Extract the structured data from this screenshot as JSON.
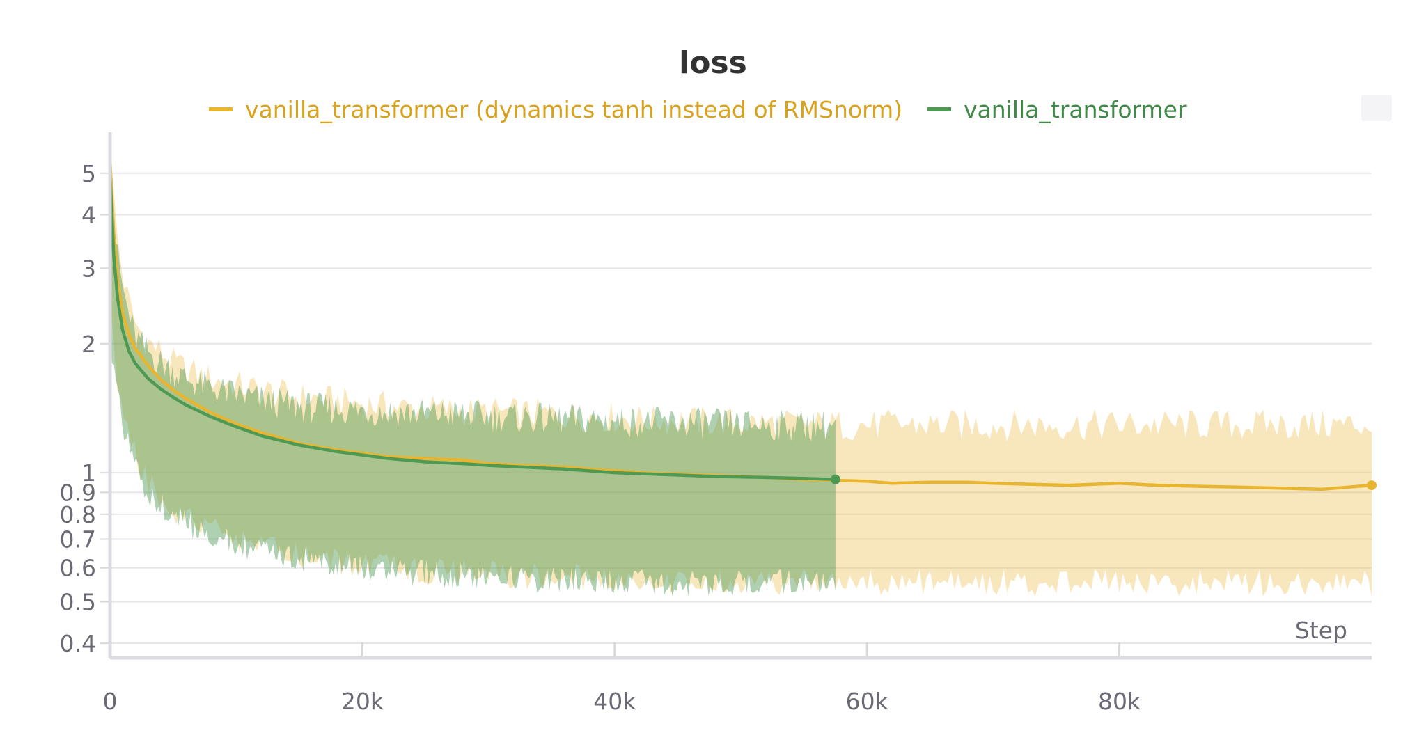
{
  "chart_data": {
    "type": "line",
    "title": "loss",
    "xlabel": "Step",
    "ylabel": "",
    "xlim": [
      0,
      100000
    ],
    "ylim": [
      0.37,
      6.0
    ],
    "yscale": "log",
    "grid": true,
    "legend_position": "top",
    "x_ticks": [
      {
        "value": 0,
        "label": "0"
      },
      {
        "value": 20000,
        "label": "20k"
      },
      {
        "value": 40000,
        "label": "40k"
      },
      {
        "value": 60000,
        "label": "60k"
      },
      {
        "value": 80000,
        "label": "80k"
      }
    ],
    "y_ticks": [
      {
        "value": 5,
        "label": "5"
      },
      {
        "value": 4,
        "label": "4"
      },
      {
        "value": 3,
        "label": "3"
      },
      {
        "value": 2,
        "label": "2"
      },
      {
        "value": 1,
        "label": "1"
      },
      {
        "value": 0.9,
        "label": "0.9"
      },
      {
        "value": 0.8,
        "label": "0.8"
      },
      {
        "value": 0.7,
        "label": "0.7"
      },
      {
        "value": 0.6,
        "label": "0.6"
      },
      {
        "value": 0.5,
        "label": "0.5"
      },
      {
        "value": 0.4,
        "label": "0.4"
      }
    ],
    "series": [
      {
        "name": "vanilla_transformer (dynamics tanh instead of RMSnorm)",
        "color": "#e8b530",
        "legend_text_color": "#d9a21c",
        "x": [
          0,
          300,
          600,
          1000,
          1500,
          2000,
          3000,
          4000,
          5000,
          6000,
          8000,
          10000,
          12000,
          15000,
          18000,
          20000,
          22000,
          25000,
          28000,
          30000,
          33000,
          36000,
          40000,
          44000,
          48000,
          52000,
          55000,
          57500,
          60000,
          62000,
          65000,
          68000,
          70000,
          73000,
          76000,
          80000,
          83000,
          86000,
          90000,
          93000,
          96000,
          98000,
          100000
        ],
        "y": [
          5.4,
          3.6,
          2.8,
          2.35,
          2.1,
          1.95,
          1.78,
          1.65,
          1.56,
          1.49,
          1.38,
          1.3,
          1.24,
          1.17,
          1.13,
          1.11,
          1.09,
          1.08,
          1.07,
          1.05,
          1.04,
          1.03,
          1.01,
          0.995,
          0.985,
          0.975,
          0.965,
          0.96,
          0.955,
          0.945,
          0.95,
          0.95,
          0.945,
          0.94,
          0.935,
          0.945,
          0.935,
          0.93,
          0.925,
          0.92,
          0.915,
          0.925,
          0.935
        ],
        "band_lower": [
          2.5,
          2.0,
          1.7,
          1.5,
          1.3,
          1.15,
          1.0,
          0.92,
          0.86,
          0.82,
          0.77,
          0.73,
          0.7,
          0.67,
          0.65,
          0.64,
          0.63,
          0.62,
          0.61,
          0.61,
          0.6,
          0.6,
          0.59,
          0.58,
          0.58,
          0.58,
          0.58,
          0.58,
          0.58,
          0.58,
          0.58,
          0.58,
          0.58,
          0.58,
          0.58,
          0.58,
          0.58,
          0.58,
          0.58,
          0.58,
          0.58,
          0.58,
          0.58
        ],
        "band_upper": [
          5.6,
          4.2,
          3.4,
          2.8,
          2.4,
          2.15,
          1.95,
          1.85,
          1.75,
          1.68,
          1.6,
          1.55,
          1.5,
          1.45,
          1.42,
          1.4,
          1.38,
          1.36,
          1.35,
          1.34,
          1.33,
          1.32,
          1.3,
          1.28,
          1.27,
          1.26,
          1.25,
          1.25,
          1.25,
          1.25,
          1.25,
          1.25,
          1.25,
          1.25,
          1.25,
          1.25,
          1.25,
          1.25,
          1.25,
          1.25,
          1.25,
          1.25,
          1.25
        ]
      },
      {
        "name": "vanilla_transformer",
        "color": "#4e9a55",
        "legend_text_color": "#3f8a48",
        "x": [
          0,
          300,
          600,
          1000,
          1500,
          2000,
          3000,
          4000,
          5000,
          6000,
          8000,
          10000,
          12000,
          15000,
          18000,
          20000,
          22000,
          25000,
          28000,
          30000,
          33000,
          36000,
          40000,
          44000,
          48000,
          52000,
          55000,
          57500
        ],
        "y": [
          5.0,
          3.2,
          2.55,
          2.15,
          1.92,
          1.8,
          1.66,
          1.57,
          1.5,
          1.44,
          1.35,
          1.28,
          1.22,
          1.16,
          1.12,
          1.1,
          1.08,
          1.06,
          1.05,
          1.04,
          1.03,
          1.02,
          1.0,
          0.99,
          0.98,
          0.975,
          0.97,
          0.965
        ],
        "band_lower": [
          2.3,
          1.8,
          1.55,
          1.35,
          1.2,
          1.08,
          0.95,
          0.88,
          0.83,
          0.8,
          0.75,
          0.71,
          0.68,
          0.66,
          0.64,
          0.63,
          0.62,
          0.61,
          0.6,
          0.6,
          0.59,
          0.59,
          0.58,
          0.58,
          0.58,
          0.58,
          0.58,
          0.58
        ],
        "band_upper": [
          5.3,
          3.9,
          3.1,
          2.6,
          2.25,
          2.0,
          1.85,
          1.75,
          1.67,
          1.6,
          1.52,
          1.47,
          1.43,
          1.38,
          1.36,
          1.35,
          1.34,
          1.33,
          1.32,
          1.31,
          1.3,
          1.29,
          1.28,
          1.27,
          1.26,
          1.25,
          1.25,
          1.25
        ]
      }
    ]
  }
}
